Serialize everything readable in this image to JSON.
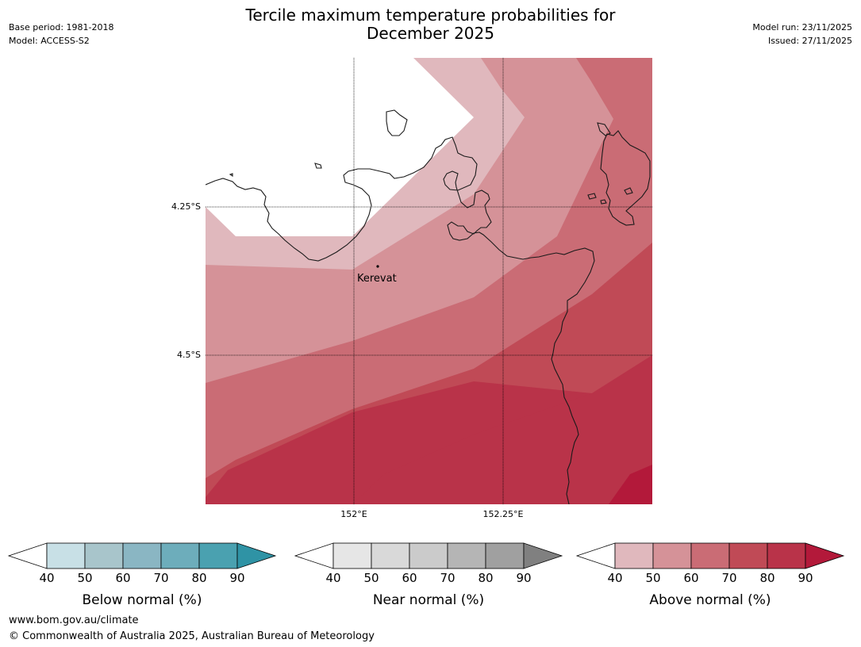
{
  "title_line1": "Tercile maximum temperature probabilities for",
  "title_line2": "December 2025",
  "meta_left": {
    "base_period": "Base period: 1981-2018",
    "model": "Model: ACCESS-S2"
  },
  "meta_right": {
    "model_run": "Model run: 23/11/2025",
    "issued": "Issued: 27/11/2025"
  },
  "map": {
    "lat_labels": [
      "4.25°S",
      "4.5°S"
    ],
    "lon_labels": [
      "152°E",
      "152.25°E"
    ],
    "place_label": "Kerevat"
  },
  "legends": [
    {
      "label": "Below normal (%)",
      "ticks": [
        "40",
        "50",
        "60",
        "70",
        "80",
        "90"
      ],
      "colors": [
        "#ffffff",
        "#c8e0e6",
        "#a8c5cb",
        "#8ab6c3",
        "#6dadbb",
        "#4aa1b0",
        "#2f93a5"
      ]
    },
    {
      "label": "Near normal (%)",
      "ticks": [
        "40",
        "50",
        "60",
        "70",
        "80",
        "90"
      ],
      "colors": [
        "#ffffff",
        "#e6e6e6",
        "#d9d9d9",
        "#cbcbcb",
        "#b5b5b5",
        "#a0a0a0",
        "#808080"
      ]
    },
    {
      "label": "Above normal (%)",
      "ticks": [
        "40",
        "50",
        "60",
        "70",
        "80",
        "90"
      ],
      "colors": [
        "#ffffff",
        "#e0b8bd",
        "#d59298",
        "#ca6c75",
        "#c04a56",
        "#b93349",
        "#b3193a"
      ]
    }
  ],
  "footer": {
    "url": "www.bom.gov.au/climate",
    "copyright": "© Commonwealth of Australia 2025, Australian Bureau of Meteorology"
  }
}
